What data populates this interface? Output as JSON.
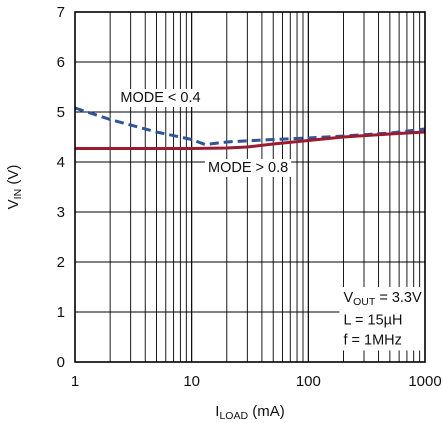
{
  "chart_data": {
    "type": "line",
    "xscale": "log",
    "xlim": [
      1,
      1000
    ],
    "ylim": [
      0,
      7
    ],
    "grid": true,
    "xlabel": {
      "main": "I",
      "sub": "LOAD",
      "rest": " (mA)"
    },
    "ylabel": {
      "main": "V",
      "sub": "IN",
      "rest": " (V)"
    },
    "x_ticks": [
      1,
      10,
      100,
      1000
    ],
    "x_tick_labels": [
      "1",
      "10",
      "100",
      "1000"
    ],
    "y_ticks": [
      0,
      1,
      2,
      3,
      4,
      5,
      6,
      7
    ],
    "y_tick_labels": [
      "0",
      "1",
      "2",
      "3",
      "4",
      "5",
      "6",
      "7"
    ],
    "series": [
      {
        "name": "MODE < 0.4",
        "style": "dashed",
        "color": "#2f5597",
        "x": [
          1,
          2,
          5,
          10,
          13,
          20,
          50,
          100,
          200,
          500,
          1000
        ],
        "y": [
          5.08,
          4.85,
          4.6,
          4.45,
          4.35,
          4.4,
          4.45,
          4.48,
          4.52,
          4.58,
          4.66
        ]
      },
      {
        "name": "MODE > 0.8",
        "style": "solid",
        "color": "#9b1b30",
        "x": [
          1,
          2,
          5,
          10,
          20,
          30,
          50,
          100,
          200,
          500,
          1000
        ],
        "y": [
          4.27,
          4.27,
          4.27,
          4.27,
          4.28,
          4.3,
          4.36,
          4.43,
          4.5,
          4.56,
          4.6
        ]
      }
    ],
    "annotations": [
      {
        "parts": [
          {
            "t": "MODE < 0.4"
          }
        ]
      },
      {
        "parts": [
          {
            "t": "MODE > 0.8"
          }
        ]
      },
      {
        "parts": [
          {
            "t": "V"
          },
          {
            "t": "OUT",
            "sub": true
          },
          {
            "t": " = 3.3V"
          }
        ]
      },
      {
        "parts": [
          {
            "t": "L = 15µH"
          }
        ]
      },
      {
        "parts": [
          {
            "t": "f = 1MHz"
          }
        ]
      }
    ]
  }
}
